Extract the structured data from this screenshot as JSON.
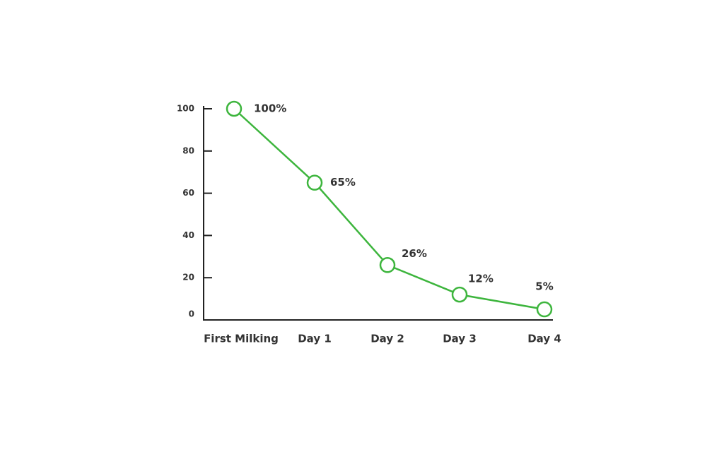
{
  "chart_data": {
    "type": "line",
    "categories": [
      "First Milking",
      "Day 1",
      "Day 2",
      "Day 3",
      "Day 4"
    ],
    "values": [
      100,
      65,
      26,
      12,
      5
    ],
    "value_labels": [
      "100%",
      "65%",
      "26%",
      "12%",
      "5%"
    ],
    "color": "#3db53d",
    "ylim": [
      0,
      100
    ],
    "yticks": [
      0,
      20,
      40,
      60,
      80,
      100
    ]
  }
}
